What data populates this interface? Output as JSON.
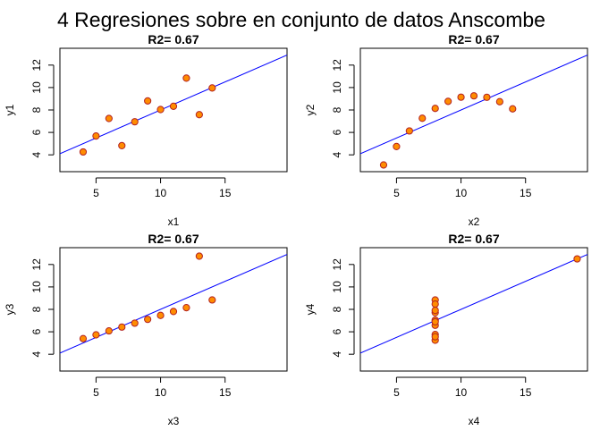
{
  "main_title": "4 Regresiones sobre en conjunto de datos Anscombe",
  "colors": {
    "point_fill": "#FF8C00",
    "point_stroke": "#B22222",
    "line": "#0000FF",
    "axes": "#000000"
  },
  "chart_data": [
    {
      "type": "scatter",
      "title": "R2= 0.67",
      "xlabel": "x1",
      "ylabel": "y1",
      "xlim": [
        2.2,
        19.8
      ],
      "ylim": [
        2.5,
        13.5
      ],
      "xticks": [
        5,
        10,
        15
      ],
      "yticks": [
        4,
        6,
        8,
        10,
        12
      ],
      "x": [
        10,
        8,
        13,
        9,
        11,
        14,
        6,
        4,
        12,
        7,
        5
      ],
      "y": [
        8.04,
        6.95,
        7.58,
        8.81,
        8.33,
        9.96,
        7.24,
        4.26,
        10.84,
        4.82,
        5.68
      ],
      "regression": {
        "intercept": 3.0,
        "slope": 0.5
      }
    },
    {
      "type": "scatter",
      "title": "R2= 0.67",
      "xlabel": "x2",
      "ylabel": "y2",
      "xlim": [
        2.2,
        19.8
      ],
      "ylim": [
        2.5,
        13.5
      ],
      "xticks": [
        5,
        10,
        15
      ],
      "yticks": [
        4,
        6,
        8,
        10,
        12
      ],
      "x": [
        10,
        8,
        13,
        9,
        11,
        14,
        6,
        4,
        12,
        7,
        5
      ],
      "y": [
        9.14,
        8.14,
        8.74,
        8.77,
        9.26,
        8.1,
        6.13,
        3.1,
        9.13,
        7.26,
        4.74
      ],
      "regression": {
        "intercept": 3.0,
        "slope": 0.5
      }
    },
    {
      "type": "scatter",
      "title": "R2= 0.67",
      "xlabel": "x3",
      "ylabel": "y3",
      "xlim": [
        2.2,
        19.8
      ],
      "ylim": [
        2.5,
        13.5
      ],
      "xticks": [
        5,
        10,
        15
      ],
      "yticks": [
        4,
        6,
        8,
        10,
        12
      ],
      "x": [
        10,
        8,
        13,
        9,
        11,
        14,
        6,
        4,
        12,
        7,
        5
      ],
      "y": [
        7.46,
        6.77,
        12.74,
        7.11,
        7.81,
        8.84,
        6.08,
        5.39,
        8.15,
        6.42,
        5.73
      ],
      "regression": {
        "intercept": 3.0,
        "slope": 0.5
      }
    },
    {
      "type": "scatter",
      "title": "R2= 0.67",
      "xlabel": "x4",
      "ylabel": "y4",
      "xlim": [
        2.2,
        19.8
      ],
      "ylim": [
        2.5,
        13.5
      ],
      "xticks": [
        5,
        10,
        15
      ],
      "yticks": [
        4,
        6,
        8,
        10,
        12
      ],
      "x": [
        8,
        8,
        8,
        8,
        8,
        8,
        8,
        19,
        8,
        8,
        8
      ],
      "y": [
        6.58,
        5.76,
        7.71,
        8.84,
        8.47,
        7.04,
        5.25,
        12.5,
        5.56,
        7.91,
        6.89
      ],
      "regression": {
        "intercept": 3.0,
        "slope": 0.5
      }
    }
  ]
}
